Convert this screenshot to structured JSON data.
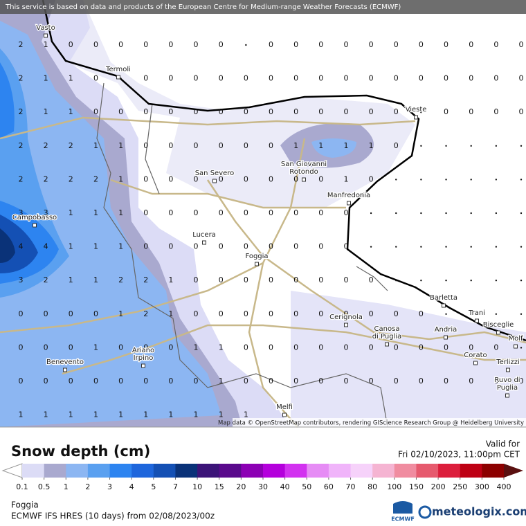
{
  "header": {
    "attribution": "This service is based on data and products of the European Centre for Medium-range Weather Forecasts (ECMWF)"
  },
  "map": {
    "credit": "Map data © OpenStreetMap contributors, rendering GIScience Research Group @ Heidelberg University",
    "places": [
      [
        "Vasto"
      ],
      [
        "Termoli"
      ],
      [
        "Vieste"
      ],
      [
        "San Giovanni",
        "Rotondo"
      ],
      [
        "San Severo"
      ],
      [
        "Manfredonia"
      ],
      [
        "Campobasso"
      ],
      [
        "Lucera"
      ],
      [
        "Foggia"
      ],
      [
        "Barletta"
      ],
      [
        "Trani"
      ],
      [
        "Bisceglie"
      ],
      [
        "Molf"
      ],
      [
        "Cerignola"
      ],
      [
        "Canosa",
        "di Puglia"
      ],
      [
        "Andria"
      ],
      [
        "Ariano",
        "Irpino"
      ],
      [
        "Benevento"
      ],
      [
        "Corato"
      ],
      [
        "Terlizzi"
      ],
      [
        "Ruvo di",
        "Puglia"
      ],
      [
        "Melfi"
      ]
    ]
  },
  "grid": {
    "rows": [
      [
        2,
        1,
        0,
        0,
        0,
        0,
        0,
        0,
        0,
        null,
        0,
        0,
        0,
        0,
        0,
        0,
        0,
        0,
        0,
        0,
        0
      ],
      [
        2,
        1,
        1,
        0,
        null,
        0,
        0,
        0,
        0,
        0,
        0,
        0,
        0,
        0,
        0,
        0,
        0,
        0,
        0,
        0,
        0
      ],
      [
        2,
        1,
        1,
        0,
        0,
        0,
        0,
        0,
        0,
        0,
        0,
        0,
        0,
        0,
        0,
        0,
        null,
        0,
        0,
        0,
        0
      ],
      [
        2,
        2,
        2,
        1,
        1,
        0,
        0,
        0,
        0,
        0,
        0,
        1,
        1,
        1,
        1,
        0,
        null,
        null,
        null,
        null,
        null
      ],
      [
        2,
        2,
        2,
        2,
        1,
        0,
        0,
        0,
        0,
        0,
        0,
        0,
        0,
        1,
        0,
        null,
        null,
        null,
        null,
        null,
        null
      ],
      [
        3,
        3,
        1,
        1,
        1,
        0,
        0,
        0,
        0,
        0,
        0,
        0,
        0,
        0,
        null,
        null,
        null,
        null,
        null,
        null,
        null
      ],
      [
        4,
        4,
        1,
        1,
        1,
        0,
        0,
        0,
        0,
        0,
        0,
        0,
        0,
        0,
        null,
        null,
        null,
        null,
        null,
        null,
        null
      ],
      [
        3,
        2,
        1,
        1,
        2,
        2,
        1,
        0,
        0,
        0,
        0,
        0,
        0,
        0,
        0,
        null,
        null,
        null,
        null,
        null,
        null
      ],
      [
        0,
        0,
        0,
        0,
        1,
        2,
        1,
        0,
        0,
        0,
        0,
        0,
        0,
        0,
        0,
        0,
        0,
        null,
        null,
        null,
        null
      ],
      [
        0,
        0,
        0,
        1,
        0,
        0,
        0,
        1,
        1,
        0,
        0,
        0,
        0,
        0,
        0,
        0,
        0,
        0,
        0,
        0,
        null
      ],
      [
        0,
        0,
        0,
        0,
        0,
        0,
        0,
        0,
        1,
        0,
        0,
        0,
        0,
        0,
        0,
        0,
        0,
        0,
        0,
        0,
        0
      ],
      [
        1,
        1,
        1,
        1,
        1,
        1,
        1,
        1,
        1,
        1
      ]
    ]
  },
  "legend": {
    "title": "Snow depth (cm)",
    "valid_label": "Valid for",
    "valid_time": "Fri 02/10/2023, 11:00pm CET",
    "ticks": [
      0.1,
      0.5,
      1,
      2,
      3,
      4,
      5,
      7,
      10,
      15,
      20,
      30,
      40,
      50,
      60,
      70,
      80,
      100,
      150,
      200,
      250,
      300,
      400
    ],
    "colors": [
      "#dcdcf6",
      "#a9a9cf",
      "#8cb6f2",
      "#5aa0f0",
      "#2d84f0",
      "#1e66dc",
      "#1450b4",
      "#0a3278",
      "#3c1478",
      "#5a0a8c",
      "#8c00b4",
      "#b400dc",
      "#d232f0",
      "#e68cf5",
      "#f0b4fa",
      "#f6d2fa",
      "#f5b4d2",
      "#f08ca0",
      "#e65a6e",
      "#dc1e3c",
      "#be0014",
      "#8c0000"
    ],
    "under_color": "#ffffff",
    "over_color": "#5a1010"
  },
  "footer": {
    "location": "Foggia",
    "model": "ECMWF IFS HRES (10 days) from 02/08/2023/00z",
    "ecmwf": "ECMWF",
    "brand": "meteologix.com"
  }
}
